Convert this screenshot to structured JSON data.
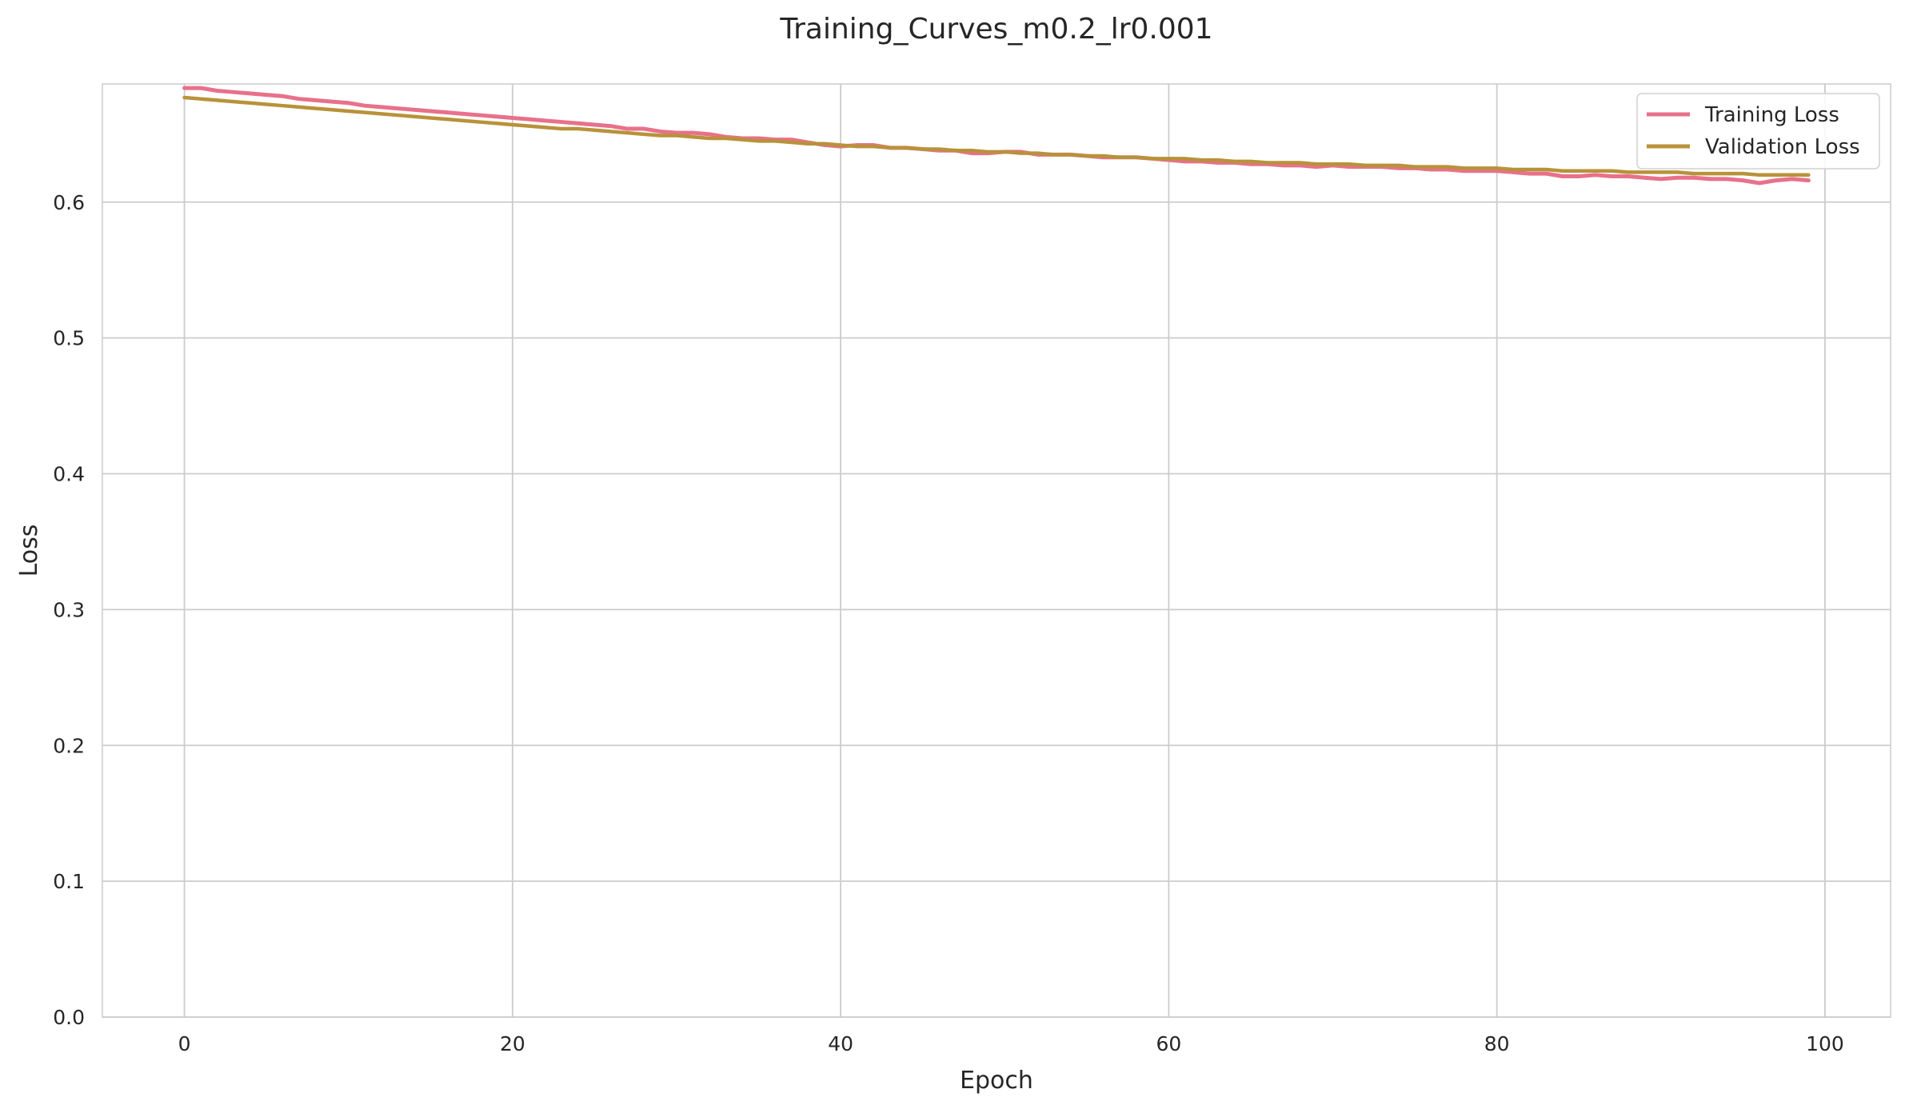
{
  "chart_data": {
    "type": "line",
    "title": "Training_Curves_m0.2_lr0.001",
    "xlabel": "Epoch",
    "ylabel": "Loss",
    "xlim": [
      -5,
      104
    ],
    "ylim": [
      0.0,
      0.687
    ],
    "xticks": [
      0,
      20,
      40,
      60,
      80,
      100
    ],
    "xtick_labels": [
      "0",
      "20",
      "40",
      "60",
      "80",
      "100"
    ],
    "yticks": [
      0.0,
      0.1,
      0.2,
      0.3,
      0.4,
      0.5,
      0.6
    ],
    "ytick_labels": [
      "0.0",
      "0.1",
      "0.2",
      "0.3",
      "0.4",
      "0.5",
      "0.6"
    ],
    "grid": true,
    "legend_position": "top-right",
    "x": [
      0,
      1,
      2,
      3,
      4,
      5,
      6,
      7,
      8,
      9,
      10,
      11,
      12,
      13,
      14,
      15,
      16,
      17,
      18,
      19,
      20,
      21,
      22,
      23,
      24,
      25,
      26,
      27,
      28,
      29,
      30,
      31,
      32,
      33,
      34,
      35,
      36,
      37,
      38,
      39,
      40,
      41,
      42,
      43,
      44,
      45,
      46,
      47,
      48,
      49,
      50,
      51,
      52,
      53,
      54,
      55,
      56,
      57,
      58,
      59,
      60,
      61,
      62,
      63,
      64,
      65,
      66,
      67,
      68,
      69,
      70,
      71,
      72,
      73,
      74,
      75,
      76,
      77,
      78,
      79,
      80,
      81,
      82,
      83,
      84,
      85,
      86,
      87,
      88,
      89,
      90,
      91,
      92,
      93,
      94,
      95,
      96,
      97,
      98,
      99
    ],
    "series": [
      {
        "name": "Training Loss",
        "color": "#e8718a",
        "values": [
          0.684,
          0.684,
          0.682,
          0.681,
          0.68,
          0.679,
          0.678,
          0.676,
          0.675,
          0.674,
          0.673,
          0.671,
          0.67,
          0.669,
          0.668,
          0.667,
          0.666,
          0.665,
          0.664,
          0.663,
          0.662,
          0.661,
          0.66,
          0.659,
          0.658,
          0.657,
          0.656,
          0.654,
          0.654,
          0.652,
          0.651,
          0.651,
          0.65,
          0.648,
          0.647,
          0.647,
          0.646,
          0.646,
          0.644,
          0.642,
          0.641,
          0.642,
          0.642,
          0.64,
          0.64,
          0.639,
          0.638,
          0.638,
          0.636,
          0.636,
          0.637,
          0.637,
          0.635,
          0.635,
          0.635,
          0.634,
          0.633,
          0.633,
          0.633,
          0.632,
          0.631,
          0.63,
          0.63,
          0.629,
          0.629,
          0.628,
          0.628,
          0.627,
          0.627,
          0.626,
          0.627,
          0.626,
          0.626,
          0.626,
          0.625,
          0.625,
          0.624,
          0.624,
          0.623,
          0.623,
          0.623,
          0.622,
          0.621,
          0.621,
          0.619,
          0.619,
          0.62,
          0.619,
          0.619,
          0.618,
          0.617,
          0.618,
          0.618,
          0.617,
          0.617,
          0.616,
          0.614,
          0.616,
          0.617,
          0.616
        ]
      },
      {
        "name": "Validation Loss",
        "color": "#b8923a",
        "values": [
          0.677,
          0.676,
          0.675,
          0.674,
          0.673,
          0.672,
          0.671,
          0.67,
          0.669,
          0.668,
          0.667,
          0.666,
          0.665,
          0.664,
          0.663,
          0.662,
          0.661,
          0.66,
          0.659,
          0.658,
          0.657,
          0.656,
          0.655,
          0.654,
          0.654,
          0.653,
          0.652,
          0.651,
          0.65,
          0.649,
          0.649,
          0.648,
          0.647,
          0.647,
          0.646,
          0.645,
          0.645,
          0.644,
          0.643,
          0.643,
          0.642,
          0.641,
          0.641,
          0.64,
          0.64,
          0.639,
          0.639,
          0.638,
          0.638,
          0.637,
          0.637,
          0.636,
          0.636,
          0.635,
          0.635,
          0.634,
          0.634,
          0.633,
          0.633,
          0.632,
          0.632,
          0.632,
          0.631,
          0.631,
          0.63,
          0.63,
          0.629,
          0.629,
          0.629,
          0.628,
          0.628,
          0.628,
          0.627,
          0.627,
          0.627,
          0.626,
          0.626,
          0.626,
          0.625,
          0.625,
          0.625,
          0.624,
          0.624,
          0.624,
          0.623,
          0.623,
          0.623,
          0.623,
          0.622,
          0.622,
          0.622,
          0.622,
          0.621,
          0.621,
          0.621,
          0.621,
          0.62,
          0.62,
          0.62,
          0.62
        ]
      }
    ]
  }
}
